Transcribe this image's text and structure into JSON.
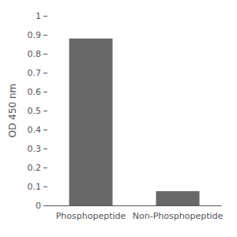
{
  "chart_data": {
    "type": "bar",
    "categories": [
      "Phosphopeptide",
      "Non-Phosphopeptide"
    ],
    "values": [
      0.88,
      0.075
    ],
    "color": "#686868",
    "ylabel": "OD 450 nm",
    "ylim": [
      0,
      1.0
    ],
    "yticks": [
      0,
      0.1,
      0.2,
      0.3,
      0.4,
      0.5,
      0.6,
      0.7,
      0.8,
      0.9,
      1
    ],
    "grid": false
  }
}
